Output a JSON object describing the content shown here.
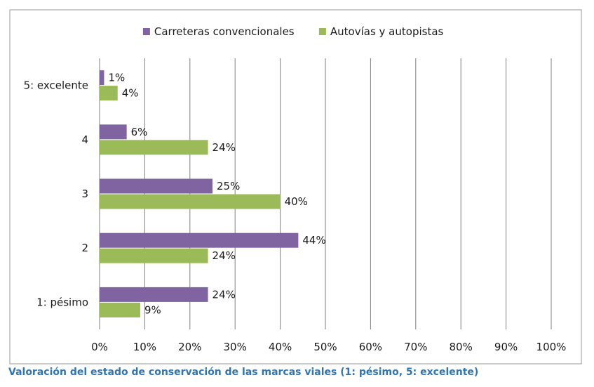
{
  "caption": "Valoración del estado de conservación de las marcas viales (1: pésimo, 5: excelente)",
  "colors": {
    "caption": "#2e75b6",
    "frame": "#9a9a9a",
    "grid": "#7f7f7f",
    "text": "#1a1a1a"
  },
  "chart_data": {
    "type": "bar",
    "orientation": "horizontal",
    "categories": [
      "5: excelente",
      "4",
      "3",
      "2",
      "1: pésimo"
    ],
    "series": [
      {
        "name": "Carreteras convencionales",
        "color": "#8064a2",
        "values": [
          1,
          6,
          25,
          44,
          24
        ],
        "labels": [
          "1%",
          "6%",
          "25%",
          "44%",
          "24%"
        ]
      },
      {
        "name": "Autovías y autopistas",
        "color": "#9bbb59",
        "values": [
          4,
          24,
          40,
          24,
          9
        ],
        "labels": [
          "4%",
          "24%",
          "40%",
          "24%",
          "9%"
        ]
      }
    ],
    "xlim": [
      0,
      100
    ],
    "xticks": [
      "0%",
      "10%",
      "20%",
      "30%",
      "40%",
      "50%",
      "60%",
      "70%",
      "80%",
      "90%",
      "100%"
    ],
    "grid": true,
    "legend_position": "top"
  }
}
